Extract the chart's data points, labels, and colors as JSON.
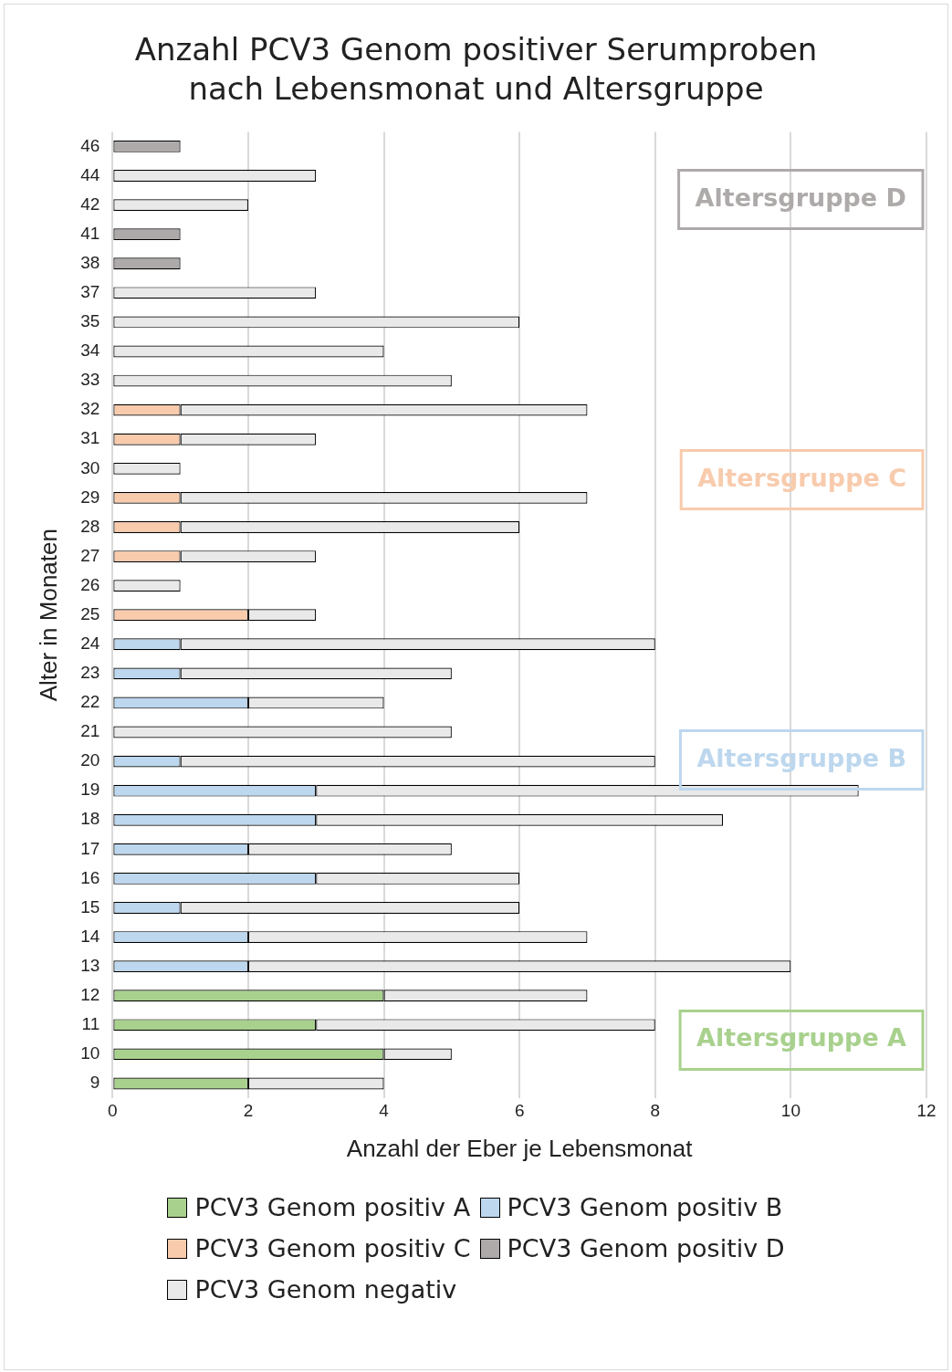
{
  "chart_data": {
    "type": "bar",
    "orientation": "horizontal",
    "stacked": true,
    "title": "Anzahl PCV3 Genom positiver Serumproben nach Lebensmonat und Altersgruppe",
    "xlabel": "Anzahl der Eber je Lebensmonat",
    "ylabel": "Alter in Monaten",
    "categories": [
      "46",
      "44",
      "42",
      "41",
      "38",
      "37",
      "35",
      "34",
      "33",
      "32",
      "31",
      "30",
      "29",
      "28",
      "27",
      "26",
      "25",
      "24",
      "23",
      "22",
      "21",
      "20",
      "19",
      "18",
      "17",
      "16",
      "15",
      "14",
      "13",
      "12",
      "11",
      "10",
      "9"
    ],
    "series": [
      {
        "name": "PCV3 Genom positiv A",
        "color": "#a9d18e",
        "values": [
          null,
          null,
          null,
          null,
          null,
          null,
          null,
          null,
          null,
          null,
          null,
          null,
          null,
          null,
          null,
          null,
          null,
          null,
          null,
          null,
          null,
          null,
          null,
          null,
          null,
          null,
          null,
          null,
          null,
          4,
          3,
          4,
          2
        ]
      },
      {
        "name": "PCV3 Genom positiv B",
        "color": "#bdd7ee",
        "values": [
          null,
          null,
          null,
          null,
          null,
          null,
          null,
          null,
          null,
          null,
          null,
          null,
          null,
          null,
          null,
          null,
          null,
          1,
          1,
          2,
          null,
          1,
          3,
          3,
          2,
          3,
          1,
          2,
          2,
          null,
          null,
          null,
          null
        ]
      },
      {
        "name": "PCV3 Genom positiv C",
        "color": "#f8cbad",
        "values": [
          null,
          null,
          null,
          null,
          null,
          null,
          null,
          null,
          null,
          1,
          1,
          null,
          1,
          1,
          1,
          null,
          2,
          null,
          null,
          null,
          null,
          null,
          null,
          null,
          null,
          null,
          null,
          null,
          null,
          null,
          null,
          null,
          null
        ]
      },
      {
        "name": "PCV3 Genom positiv D",
        "color": "#aeaaaa",
        "values": [
          1,
          null,
          null,
          1,
          1,
          null,
          null,
          null,
          null,
          null,
          null,
          null,
          null,
          null,
          null,
          null,
          null,
          null,
          null,
          null,
          null,
          null,
          null,
          null,
          null,
          null,
          null,
          null,
          null,
          null,
          null,
          null,
          null
        ]
      },
      {
        "name": "PCV3 Genom negativ",
        "color": "#e9e9e9",
        "values": [
          null,
          3,
          2,
          null,
          null,
          3,
          6,
          4,
          5,
          6,
          2,
          1,
          6,
          5,
          2,
          1,
          1,
          7,
          4,
          2,
          5,
          7,
          8,
          6,
          3,
          3,
          5,
          5,
          8,
          3,
          5,
          1,
          2
        ]
      }
    ],
    "xlim": [
      0,
      12
    ],
    "xticks": [
      0,
      2,
      4,
      6,
      8,
      10,
      12
    ],
    "grid": "x",
    "legend": "bottom",
    "annotations": [
      "Altersgruppe A",
      "Altersgruppe B",
      "Altersgruppe C",
      "Altersgruppe D"
    ]
  }
}
